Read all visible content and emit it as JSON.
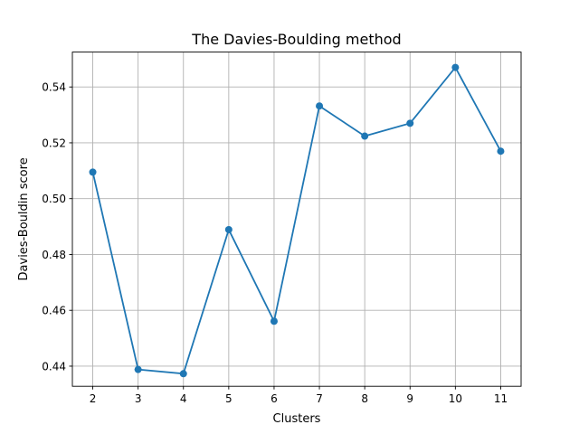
{
  "chart_data": {
    "type": "line",
    "title": "The Davies-Boulding method",
    "xlabel": "Clusters",
    "ylabel": "Davies-Bouldin score",
    "x": [
      2,
      3,
      4,
      5,
      6,
      7,
      8,
      9,
      10,
      11
    ],
    "series": [
      {
        "values": [
          0.5095,
          0.4388,
          0.4373,
          0.4889,
          0.4561,
          0.5332,
          0.5224,
          0.527,
          0.547,
          0.517
        ]
      }
    ],
    "xticks": [
      "2",
      "3",
      "4",
      "5",
      "6",
      "7",
      "8",
      "9",
      "10",
      "11"
    ],
    "yticks": [
      "0.44",
      "0.46",
      "0.48",
      "0.50",
      "0.52",
      "0.54"
    ],
    "ytick_values": [
      0.44,
      0.46,
      0.48,
      0.5,
      0.52,
      0.54
    ],
    "xlim": [
      1.55,
      11.45
    ],
    "ylim": [
      0.4328,
      0.5525
    ],
    "grid": true,
    "marker": "circle",
    "line_color": "#1f77b4"
  }
}
